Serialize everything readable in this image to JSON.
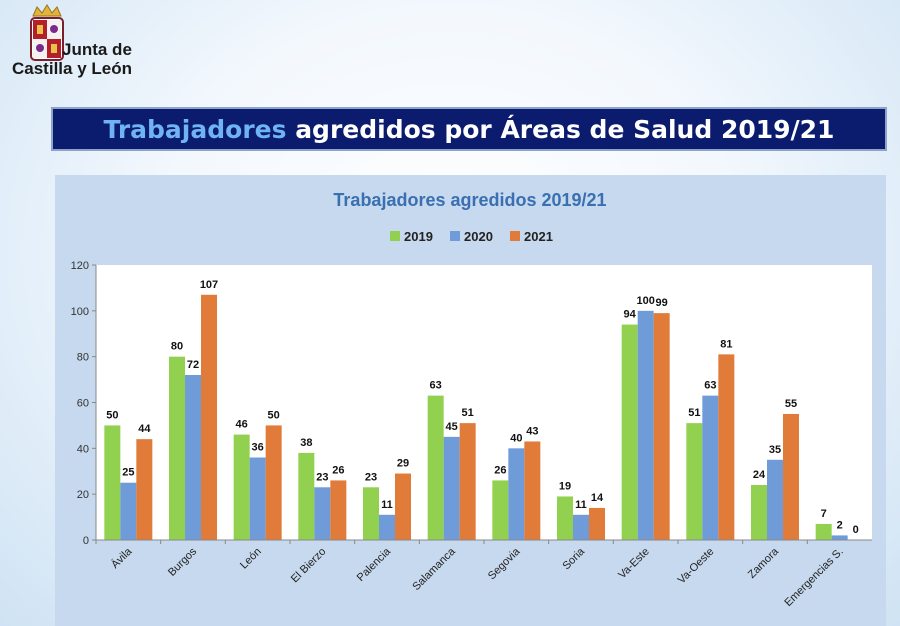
{
  "header": {
    "logo_line1": "Junta de",
    "logo_line2": "Castilla y León"
  },
  "banner": {
    "title_highlight": "Trabajadores",
    "title_rest": " agredidos por Áreas de Salud 2019/21"
  },
  "colors": {
    "2019": "#92d050",
    "2020": "#6f9bd8",
    "2021": "#e07b39",
    "banner_bg": "#0b1b6e",
    "title_blue": "#3a6fb0"
  },
  "chart_data": {
    "type": "bar",
    "title": "Trabajadores agredidos 2019/21",
    "categories": [
      "Ávila",
      "Burgos",
      "León",
      "El Bierzo",
      "Palencia",
      "Salamanca",
      "Segovia",
      "Soria",
      "Va-Este",
      "Va-Oeste",
      "Zamora",
      "Emergencias S."
    ],
    "series": [
      {
        "name": "2019",
        "values": [
          50,
          80,
          46,
          38,
          23,
          63,
          26,
          19,
          94,
          51,
          24,
          7
        ]
      },
      {
        "name": "2020",
        "values": [
          25,
          72,
          36,
          23,
          11,
          45,
          40,
          11,
          100,
          63,
          35,
          2
        ]
      },
      {
        "name": "2021",
        "values": [
          44,
          107,
          50,
          26,
          29,
          51,
          43,
          14,
          99,
          81,
          55,
          0
        ]
      }
    ],
    "ylim": [
      0,
      120
    ],
    "yticks": [
      0,
      20,
      40,
      60,
      80,
      100,
      120
    ],
    "grid": false,
    "legend_position": "top-center",
    "data_labels": true
  }
}
